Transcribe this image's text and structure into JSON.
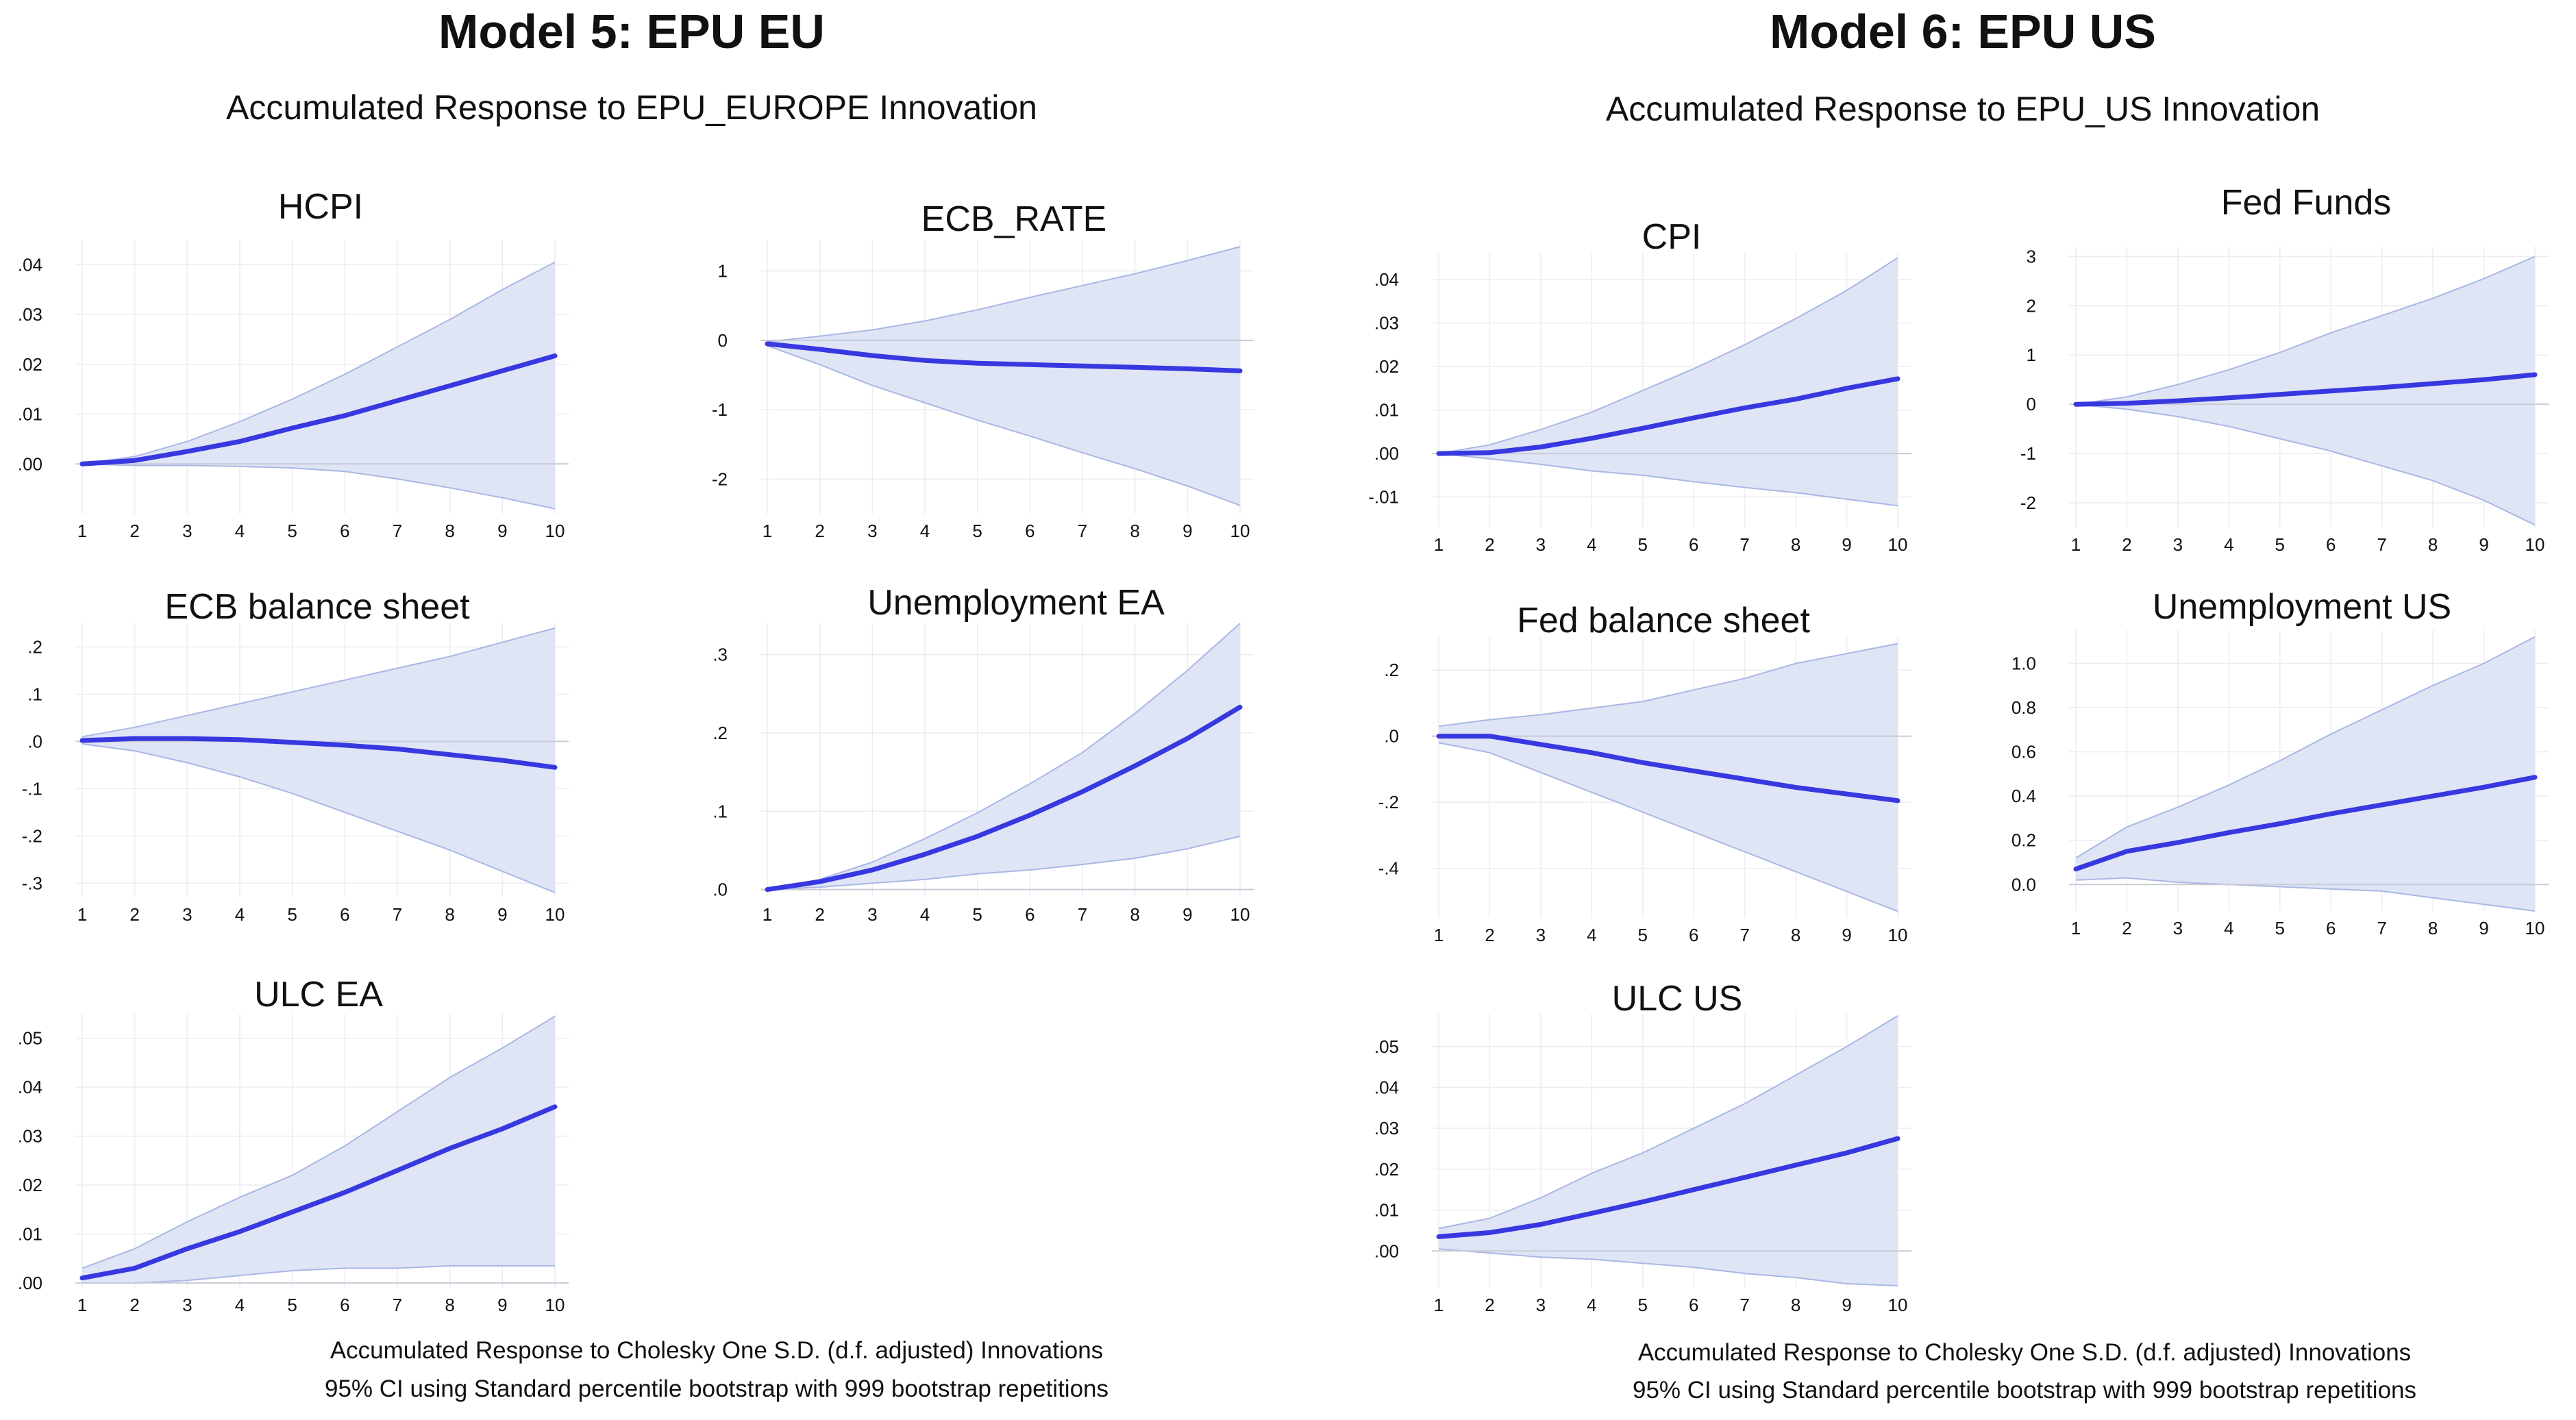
{
  "colors": {
    "line": "#3838e0",
    "band": "#dfe5f5",
    "band_edge": "#aab7e6",
    "grid": "#ececf2",
    "zero": "#c9cbd6"
  },
  "models": [
    {
      "title": "Model 5: EPU EU",
      "subtitle": "Accumulated Response to EPU_EUROPE Innovation",
      "footnote_1": "Accumulated Response to Cholesky One S.D. (d.f. adjusted) Innovations",
      "footnote_2": "95% CI using Standard percentile bootstrap with 999 bootstrap repetitions"
    },
    {
      "title": "Model 6: EPU US",
      "subtitle": "Accumulated Response to EPU_US Innovation",
      "footnote_1": "Accumulated Response to Cholesky One S.D. (d.f. adjusted) Innovations",
      "footnote_2": "95% CI using Standard percentile bootstrap with 999 bootstrap repetitions"
    }
  ],
  "chart_data": [
    {
      "type": "line",
      "title": "HCPI",
      "x": [
        1,
        2,
        3,
        4,
        5,
        6,
        7,
        8,
        9,
        10
      ],
      "series": [
        {
          "name": "response",
          "values": [
            0,
            0.0007,
            0.0025,
            0.0045,
            0.0072,
            0.0097,
            0.0127,
            0.0157,
            0.0187,
            0.0217
          ]
        },
        {
          "name": "upper_95",
          "values": [
            0,
            0.0015,
            0.0045,
            0.0085,
            0.013,
            0.018,
            0.0235,
            0.029,
            0.035,
            0.0405
          ]
        },
        {
          "name": "lower_95",
          "values": [
            0,
            -0.0003,
            -0.0003,
            -0.0005,
            -0.0008,
            -0.0015,
            -0.003,
            -0.0048,
            -0.0068,
            -0.009
          ]
        }
      ],
      "ylim": [
        -0.01,
        0.045
      ],
      "yticks": [
        0,
        0.01,
        0.02,
        0.03,
        0.04
      ],
      "ytick_labels": [
        ".00",
        ".01",
        ".02",
        ".03",
        ".04"
      ]
    },
    {
      "type": "line",
      "title": "ECB_RATE",
      "x": [
        1,
        2,
        3,
        4,
        5,
        6,
        7,
        8,
        9,
        10
      ],
      "series": [
        {
          "name": "response",
          "values": [
            -0.05,
            -0.13,
            -0.22,
            -0.29,
            -0.33,
            -0.35,
            -0.37,
            -0.39,
            -0.41,
            -0.44
          ]
        },
        {
          "name": "upper_95",
          "values": [
            -0.02,
            0.06,
            0.15,
            0.28,
            0.44,
            0.62,
            0.79,
            0.96,
            1.15,
            1.35
          ]
        },
        {
          "name": "lower_95",
          "values": [
            -0.08,
            -0.35,
            -0.65,
            -0.9,
            -1.15,
            -1.38,
            -1.62,
            -1.85,
            -2.1,
            -2.38
          ]
        }
      ],
      "ylim": [
        -2.5,
        1.45
      ],
      "yticks": [
        -2,
        -1,
        0,
        1
      ],
      "ytick_labels": [
        "-2",
        "-1",
        "0",
        "1"
      ]
    },
    {
      "type": "line",
      "title": "ECB balance sheet",
      "x": [
        1,
        2,
        3,
        4,
        5,
        6,
        7,
        8,
        9,
        10
      ],
      "series": [
        {
          "name": "response",
          "values": [
            0.002,
            0.006,
            0.006,
            0.004,
            -0.002,
            -0.008,
            -0.016,
            -0.028,
            -0.04,
            -0.055
          ]
        },
        {
          "name": "upper_95",
          "values": [
            0.01,
            0.03,
            0.055,
            0.08,
            0.105,
            0.13,
            0.155,
            0.18,
            0.21,
            0.24
          ]
        },
        {
          "name": "lower_95",
          "values": [
            -0.005,
            -0.02,
            -0.045,
            -0.075,
            -0.11,
            -0.15,
            -0.19,
            -0.23,
            -0.275,
            -0.32
          ]
        }
      ],
      "ylim": [
        -0.33,
        0.25
      ],
      "yticks": [
        -0.3,
        -0.2,
        -0.1,
        0,
        0.1,
        0.2
      ],
      "ytick_labels": [
        "-.3",
        "-.2",
        "-.1",
        ".0",
        ".1",
        ".2"
      ]
    },
    {
      "type": "line",
      "title": "Unemployment EA",
      "x": [
        1,
        2,
        3,
        4,
        5,
        6,
        7,
        8,
        9,
        10
      ],
      "series": [
        {
          "name": "response",
          "values": [
            0,
            0.01,
            0.025,
            0.045,
            0.068,
            0.095,
            0.125,
            0.158,
            0.193,
            0.233
          ]
        },
        {
          "name": "upper_95",
          "values": [
            0,
            0.013,
            0.035,
            0.065,
            0.098,
            0.135,
            0.175,
            0.225,
            0.28,
            0.34
          ]
        },
        {
          "name": "lower_95",
          "values": [
            0,
            0.003,
            0.008,
            0.013,
            0.02,
            0.025,
            0.032,
            0.04,
            0.052,
            0.068
          ]
        }
      ],
      "ylim": [
        -0.01,
        0.34
      ],
      "yticks": [
        0,
        0.1,
        0.2,
        0.3
      ],
      "ytick_labels": [
        ".0",
        ".1",
        ".2",
        ".3"
      ]
    },
    {
      "type": "line",
      "title": "ULC EA",
      "x": [
        1,
        2,
        3,
        4,
        5,
        6,
        7,
        8,
        9,
        10
      ],
      "series": [
        {
          "name": "response",
          "values": [
            0.001,
            0.003,
            0.007,
            0.0105,
            0.0145,
            0.0185,
            0.023,
            0.0275,
            0.0315,
            0.036
          ]
        },
        {
          "name": "upper_95",
          "values": [
            0.003,
            0.007,
            0.0125,
            0.0175,
            0.022,
            0.028,
            0.035,
            0.042,
            0.048,
            0.0545
          ]
        },
        {
          "name": "lower_95",
          "values": [
            0,
            0,
            0.0005,
            0.0015,
            0.0025,
            0.003,
            0.003,
            0.0035,
            0.0035,
            0.0035
          ]
        }
      ],
      "ylim": [
        -0.001,
        0.055
      ],
      "yticks": [
        0,
        0.01,
        0.02,
        0.03,
        0.04,
        0.05
      ],
      "ytick_labels": [
        ".00",
        ".01",
        ".02",
        ".03",
        ".04",
        ".05"
      ]
    },
    {
      "type": "line",
      "title": "CPI",
      "x": [
        1,
        2,
        3,
        4,
        5,
        6,
        7,
        8,
        9,
        10
      ],
      "series": [
        {
          "name": "response",
          "values": [
            0,
            0.0002,
            0.0015,
            0.0035,
            0.0058,
            0.0082,
            0.0105,
            0.0125,
            0.015,
            0.0172
          ]
        },
        {
          "name": "upper_95",
          "values": [
            0,
            0.002,
            0.0055,
            0.0095,
            0.0145,
            0.0195,
            0.025,
            0.031,
            0.0375,
            0.045
          ]
        },
        {
          "name": "lower_95",
          "values": [
            0,
            -0.0012,
            -0.0025,
            -0.004,
            -0.005,
            -0.0065,
            -0.0078,
            -0.009,
            -0.0105,
            -0.012
          ]
        }
      ],
      "ylim": [
        -0.017,
        0.046
      ],
      "yticks": [
        -0.01,
        0,
        0.01,
        0.02,
        0.03,
        0.04
      ],
      "ytick_labels": [
        "-.01",
        ".00",
        ".01",
        ".02",
        ".03",
        ".04"
      ]
    },
    {
      "type": "line",
      "title": "Fed Funds",
      "x": [
        1,
        2,
        3,
        4,
        5,
        6,
        7,
        8,
        9,
        10
      ],
      "series": [
        {
          "name": "response",
          "values": [
            0,
            0.02,
            0.07,
            0.13,
            0.2,
            0.27,
            0.34,
            0.42,
            0.5,
            0.6
          ]
        },
        {
          "name": "upper_95",
          "values": [
            0,
            0.15,
            0.4,
            0.7,
            1.05,
            1.45,
            1.8,
            2.15,
            2.55,
            3.0
          ]
        },
        {
          "name": "lower_95",
          "values": [
            0,
            -0.1,
            -0.25,
            -0.45,
            -0.7,
            -0.95,
            -1.25,
            -1.55,
            -1.95,
            -2.45
          ]
        }
      ],
      "ylim": [
        -2.5,
        3.2
      ],
      "yticks": [
        -2,
        -1,
        0,
        1,
        2,
        3
      ],
      "ytick_labels": [
        "-2",
        "-1",
        "0",
        "1",
        "2",
        "3"
      ]
    },
    {
      "type": "line",
      "title": "Fed balance sheet",
      "x": [
        1,
        2,
        3,
        4,
        5,
        6,
        7,
        8,
        9,
        10
      ],
      "series": [
        {
          "name": "response",
          "values": [
            0,
            0,
            -0.025,
            -0.05,
            -0.08,
            -0.105,
            -0.13,
            -0.155,
            -0.175,
            -0.195
          ]
        },
        {
          "name": "upper_95",
          "values": [
            0.03,
            0.05,
            0.065,
            0.085,
            0.105,
            0.14,
            0.175,
            0.22,
            0.25,
            0.28
          ]
        },
        {
          "name": "lower_95",
          "values": [
            -0.02,
            -0.05,
            -0.11,
            -0.17,
            -0.23,
            -0.29,
            -0.35,
            -0.41,
            -0.47,
            -0.53
          ]
        }
      ],
      "ylim": [
        -0.55,
        0.3
      ],
      "yticks": [
        -0.4,
        -0.2,
        0,
        0.2
      ],
      "ytick_labels": [
        "-.4",
        "-.2",
        ".0",
        ".2"
      ]
    },
    {
      "type": "line",
      "title": "Unemployment US",
      "x": [
        1,
        2,
        3,
        4,
        5,
        6,
        7,
        8,
        9,
        10
      ],
      "series": [
        {
          "name": "response",
          "values": [
            0.07,
            0.15,
            0.19,
            0.235,
            0.275,
            0.32,
            0.36,
            0.4,
            0.44,
            0.485
          ]
        },
        {
          "name": "upper_95",
          "values": [
            0.12,
            0.26,
            0.35,
            0.45,
            0.56,
            0.68,
            0.79,
            0.9,
            1.0,
            1.12
          ]
        },
        {
          "name": "lower_95",
          "values": [
            0.02,
            0.03,
            0.01,
            0,
            -0.01,
            -0.02,
            -0.03,
            -0.06,
            -0.09,
            -0.12
          ]
        }
      ],
      "ylim": [
        -0.12,
        1.15
      ],
      "yticks": [
        0,
        0.2,
        0.4,
        0.6,
        0.8,
        1.0
      ],
      "ytick_labels": [
        "0.0",
        "0.2",
        "0.4",
        "0.6",
        "0.8",
        "1.0"
      ]
    },
    {
      "type": "line",
      "title": "ULC US",
      "x": [
        1,
        2,
        3,
        4,
        5,
        6,
        7,
        8,
        9,
        10
      ],
      "series": [
        {
          "name": "response",
          "values": [
            0.0035,
            0.0045,
            0.0065,
            0.0092,
            0.012,
            0.015,
            0.018,
            0.021,
            0.024,
            0.0275
          ]
        },
        {
          "name": "upper_95",
          "values": [
            0.0055,
            0.008,
            0.013,
            0.019,
            0.024,
            0.03,
            0.036,
            0.043,
            0.05,
            0.0575
          ]
        },
        {
          "name": "lower_95",
          "values": [
            0.0005,
            -0.0005,
            -0.0015,
            -0.002,
            -0.003,
            -0.004,
            -0.0055,
            -0.0065,
            -0.008,
            -0.0085
          ]
        }
      ],
      "ylim": [
        -0.009,
        0.058
      ],
      "yticks": [
        0,
        0.01,
        0.02,
        0.03,
        0.04,
        0.05
      ],
      "ytick_labels": [
        ".00",
        ".01",
        ".02",
        ".03",
        ".04",
        ".05"
      ]
    }
  ]
}
